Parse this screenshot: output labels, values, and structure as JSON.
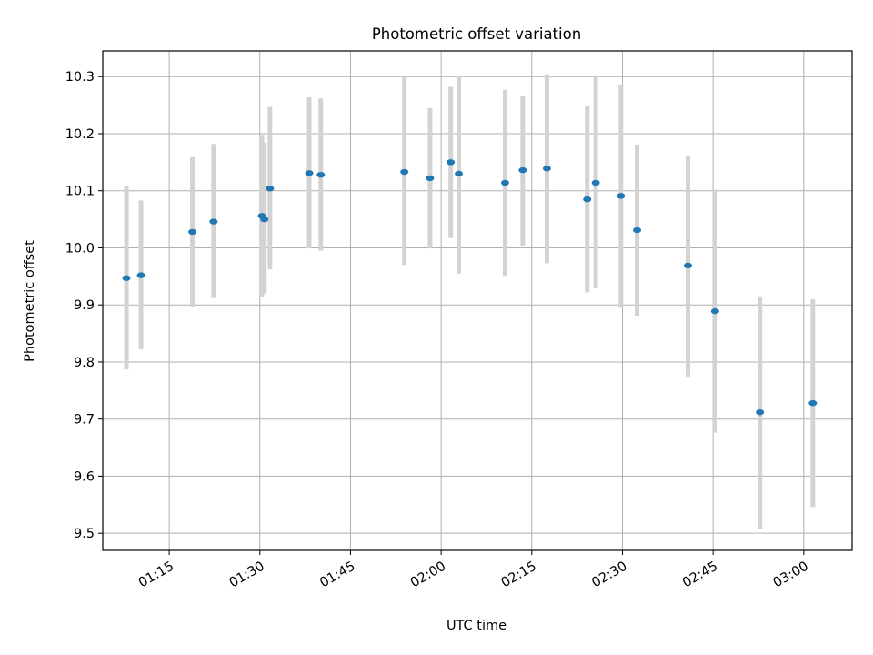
{
  "chart_data": {
    "type": "scatter",
    "title": "Photometric offset variation",
    "xlabel": "UTC time",
    "ylabel": "Photometric offset",
    "x_unit": "UTC time (HH:MM)",
    "xlim": [
      "01:04",
      "03:08"
    ],
    "ylim": [
      9.47,
      10.345
    ],
    "x_ticks": [
      "01:15",
      "01:30",
      "01:45",
      "02:00",
      "02:15",
      "02:30",
      "02:45",
      "03:00"
    ],
    "y_ticks": [
      9.5,
      9.6,
      9.7,
      9.8,
      9.9,
      10.0,
      10.1,
      10.2,
      10.3
    ],
    "y_tick_labels": [
      "9.5",
      "9.6",
      "9.7",
      "9.8",
      "9.9",
      "10.0",
      "10.1",
      "10.2",
      "10.3"
    ],
    "grid": true,
    "colors": {
      "points": "#1f77b4",
      "errorbars": "#d3d3d3"
    },
    "series": [
      {
        "points": [
          {
            "x": "01:07:55",
            "y": 9.947,
            "yerr_low": 9.787,
            "yerr_high": 10.108
          },
          {
            "x": "01:10:20",
            "y": 9.952,
            "yerr_low": 9.822,
            "yerr_high": 10.083
          },
          {
            "x": "01:18:50",
            "y": 10.028,
            "yerr_low": 9.897,
            "yerr_high": 10.159
          },
          {
            "x": "01:22:20",
            "y": 10.046,
            "yerr_low": 9.912,
            "yerr_high": 10.182
          },
          {
            "x": "01:30:20",
            "y": 10.056,
            "yerr_low": 9.913,
            "yerr_high": 10.198
          },
          {
            "x": "01:30:45",
            "y": 10.05,
            "yerr_low": 9.92,
            "yerr_high": 10.184
          },
          {
            "x": "01:31:40",
            "y": 10.104,
            "yerr_low": 9.962,
            "yerr_high": 10.247
          },
          {
            "x": "01:38:10",
            "y": 10.131,
            "yerr_low": 9.999,
            "yerr_high": 10.264
          },
          {
            "x": "01:40:05",
            "y": 10.128,
            "yerr_low": 9.995,
            "yerr_high": 10.262
          },
          {
            "x": "01:53:55",
            "y": 10.133,
            "yerr_low": 9.97,
            "yerr_high": 10.299
          },
          {
            "x": "01:58:10",
            "y": 10.122,
            "yerr_low": 9.999,
            "yerr_high": 10.245
          },
          {
            "x": "02:01:35",
            "y": 10.15,
            "yerr_low": 10.017,
            "yerr_high": 10.282
          },
          {
            "x": "02:02:55",
            "y": 10.13,
            "yerr_low": 9.955,
            "yerr_high": 10.302
          },
          {
            "x": "02:10:35",
            "y": 10.114,
            "yerr_low": 9.951,
            "yerr_high": 10.277
          },
          {
            "x": "02:13:30",
            "y": 10.136,
            "yerr_low": 10.004,
            "yerr_high": 10.266
          },
          {
            "x": "02:17:30",
            "y": 10.139,
            "yerr_low": 9.973,
            "yerr_high": 10.304
          },
          {
            "x": "02:24:10",
            "y": 10.085,
            "yerr_low": 9.922,
            "yerr_high": 10.248
          },
          {
            "x": "02:25:35",
            "y": 10.114,
            "yerr_low": 9.929,
            "yerr_high": 10.3
          },
          {
            "x": "02:29:45",
            "y": 10.091,
            "yerr_low": 9.895,
            "yerr_high": 10.286
          },
          {
            "x": "02:32:25",
            "y": 10.031,
            "yerr_low": 9.881,
            "yerr_high": 10.181
          },
          {
            "x": "02:40:50",
            "y": 9.969,
            "yerr_low": 9.774,
            "yerr_high": 10.162
          },
          {
            "x": "02:45:20",
            "y": 9.889,
            "yerr_low": 9.676,
            "yerr_high": 10.102
          },
          {
            "x": "02:52:45",
            "y": 9.712,
            "yerr_low": 9.508,
            "yerr_high": 9.915
          },
          {
            "x": "03:01:30",
            "y": 9.728,
            "yerr_low": 9.546,
            "yerr_high": 9.91
          }
        ]
      }
    ]
  }
}
